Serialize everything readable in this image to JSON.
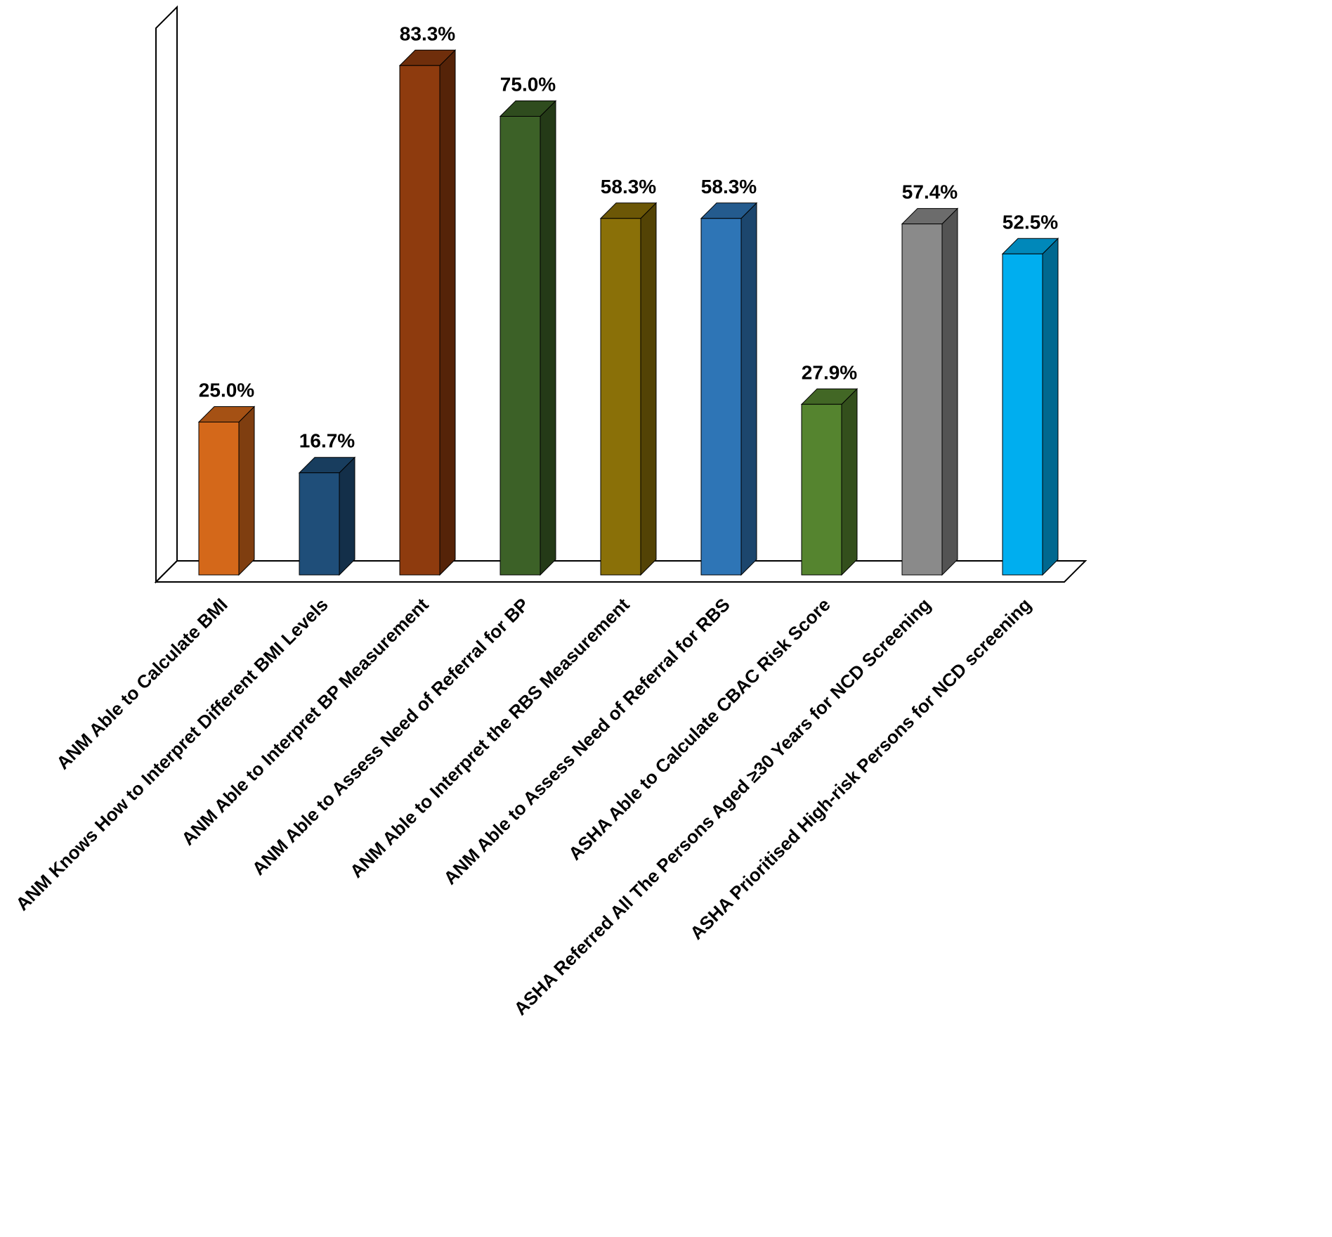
{
  "chart_data": {
    "type": "bar",
    "style": "3d-column",
    "title": "",
    "xlabel": "",
    "ylabel": "",
    "unit": "%",
    "ylim": [
      0,
      90
    ],
    "grid": false,
    "legend": "none",
    "categories": [
      "ANM Able to Calculate BMI",
      "ANM Knows How to Interpret Different BMI Levels",
      "ANM Able to Interpret BP Measurement",
      "ANM Able to Assess Need of Referral for BP",
      "ANM Able to Interpret the RBS Measurement",
      "ANM Able to Assess Need of Referral for RBS",
      "ASHA Able to Calculate CBAC Risk Score",
      "ASHA Referred All The Persons Aged ≥30 Years for NCD Screening",
      "ASHA Prioritised High-risk Persons for NCD screening"
    ],
    "values": [
      25.0,
      16.7,
      83.3,
      75.0,
      58.3,
      58.3,
      27.9,
      57.4,
      52.5
    ],
    "value_labels": [
      "25.0%",
      "16.7%",
      "83.3%",
      "75.0%",
      "58.3%",
      "58.3%",
      "27.9%",
      "57.4%",
      "52.5%"
    ],
    "colors": [
      "#D4681A",
      "#1F4E79",
      "#8E3B0E",
      "#3C6127",
      "#8A7008",
      "#2E75B6",
      "#55842F",
      "#8A8A8A",
      "#00AEEF"
    ]
  },
  "colors": {
    "background": "#FFFFFF",
    "axis": "#000000",
    "text": "#000000",
    "wall_fill": "#FFFFFF",
    "floor_fill": "#FFFFFF"
  }
}
